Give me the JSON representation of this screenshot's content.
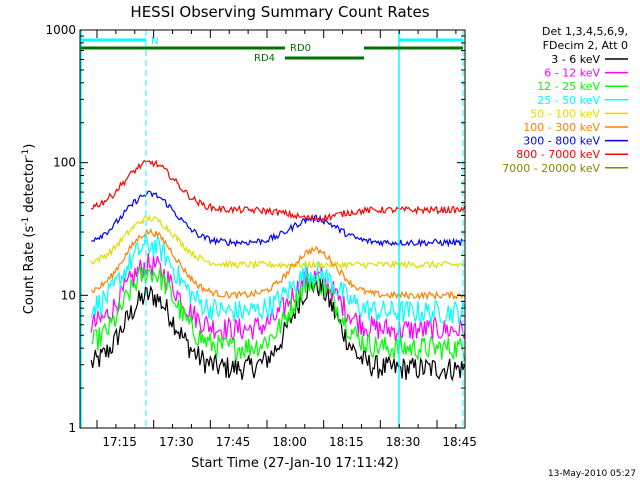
{
  "chart_data": {
    "type": "line",
    "title": "HESSI Observing Summary Count Rates",
    "xlabel": "Start Time (27-Jan-10 17:11:42)",
    "ylabel_main": "Count Rate (s",
    "ylabel_sup1": "-1",
    "ylabel_mid": " detector",
    "ylabel_sup2": "-1",
    "ylabel_end": ")",
    "y_scale": "log",
    "ylim": [
      1,
      1000
    ],
    "xlim_minutes": [
      17.3,
      98
    ],
    "x_ticks": [
      {
        "minute": 21,
        "label": "17:15"
      },
      {
        "minute": 36,
        "label": "17:30"
      },
      {
        "minute": 51,
        "label": "17:45"
      },
      {
        "minute": 66,
        "label": "18:00"
      },
      {
        "minute": 81,
        "label": "18:15"
      },
      {
        "minute": 96,
        "label": "18:30"
      },
      {
        "minute": 111,
        "label": "18:45"
      }
    ],
    "y_ticks": [
      {
        "value": 1,
        "label": "1"
      },
      {
        "value": 10,
        "label": "10"
      },
      {
        "value": 100,
        "label": "100"
      },
      {
        "value": 1000,
        "label": "1000"
      }
    ],
    "legend_header": [
      "Det 1,3,4,5,6,9,",
      "FDecim 2, Att 0"
    ],
    "footer_date": "13-May-2010 05:27",
    "annotations": {
      "night_label": "N",
      "rd0_label": "RD0",
      "rd4_label": "RD4"
    },
    "series": [
      {
        "name": "3 - 6 keV",
        "color": "#000000",
        "peak1": 10,
        "peak2": 12,
        "base": 2.8
      },
      {
        "name": "6 - 12 keV",
        "color": "#ff00ff",
        "peak1": 17,
        "peak2": 14,
        "base": 5.5
      },
      {
        "name": "12 - 25 keV",
        "color": "#00ff00",
        "peak1": 15,
        "peak2": 13,
        "base": 4.0
      },
      {
        "name": "25 - 50 keV",
        "color": "#00ffff",
        "peak1": 24,
        "peak2": 15,
        "base": 7.5
      },
      {
        "name": "50 - 100 keV",
        "color": "#dddd00",
        "peak1": 38,
        "peak2": 17,
        "base": 17
      },
      {
        "name": "100 - 300 keV",
        "color": "#ff8000",
        "peak1": 30,
        "peak2": 22,
        "base": 10
      },
      {
        "name": "300 - 800 keV",
        "color": "#0000ff",
        "peak1": 58,
        "peak2": 38,
        "base": 25
      },
      {
        "name": "800 - 7000 keV",
        "color": "#ff0000",
        "peak1": 100,
        "peak2": 38,
        "base": 44
      },
      {
        "name": "7000 - 20000 keV",
        "color": "#888800",
        "peak1": 0,
        "peak2": 0,
        "base": 0
      }
    ]
  }
}
